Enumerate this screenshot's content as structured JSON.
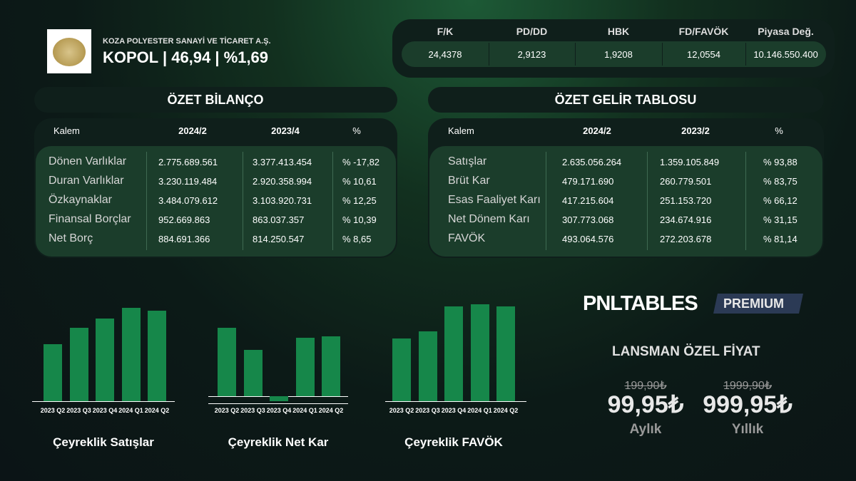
{
  "header": {
    "company": "KOZA POLYESTER SANAYİ VE TİCARET A.Ş.",
    "ticker_line": "KOPOL | 46,94 | %1,69"
  },
  "ratios": {
    "headers": [
      "F/K",
      "PD/DD",
      "HBK",
      "FD/FAVÖK",
      "Piyasa Değ."
    ],
    "values": [
      "24,4378",
      "2,9123",
      "1,9208",
      "12,0554",
      "10.146.550.400"
    ]
  },
  "balance": {
    "title": "ÖZET BİLANÇO",
    "columns": [
      "Kalem",
      "2024/2",
      "2023/4",
      "%"
    ],
    "rows": [
      [
        "Dönen Varlıklar",
        "2.775.689.561",
        "3.377.413.454",
        "% -17,82"
      ],
      [
        "Duran Varlıklar",
        "3.230.119.484",
        "2.920.358.994",
        "% 10,61"
      ],
      [
        "Özkaynaklar",
        "3.484.079.612",
        "3.103.920.731",
        "% 12,25"
      ],
      [
        "Finansal Borçlar",
        "952.669.863",
        "863.037.357",
        "% 10,39"
      ],
      [
        "Net Borç",
        "884.691.366",
        "814.250.547",
        "% 8,65"
      ]
    ]
  },
  "income": {
    "title": "ÖZET GELİR TABLOSU",
    "columns": [
      "Kalem",
      "2024/2",
      "2023/2",
      "%"
    ],
    "rows": [
      [
        "Satışlar",
        "2.635.056.264",
        "1.359.105.849",
        "% 93,88"
      ],
      [
        "Brüt Kar",
        "479.171.690",
        "260.779.501",
        "% 83,75"
      ],
      [
        "Esas Faaliyet Karı",
        "417.215.604",
        "251.153.720",
        "% 66,12"
      ],
      [
        "Net Dönem Karı",
        "307.773.068",
        "234.674.916",
        "% 31,15"
      ],
      [
        "FAVÖK",
        "493.064.576",
        "272.203.678",
        "% 81,14"
      ]
    ]
  },
  "chart_data": [
    {
      "type": "bar",
      "title": "Çeyreklik Satışlar",
      "categories": [
        "2023 Q2",
        "2023 Q3",
        "2023 Q4",
        "2024 Q1",
        "2024 Q2"
      ],
      "values": [
        815,
        1050,
        1185,
        1340,
        1295
      ],
      "color": "#16874a"
    },
    {
      "type": "bar",
      "title": "Çeyreklik Net Kar",
      "categories": [
        "2023 Q2",
        "2023 Q3",
        "2023 Q4",
        "2024 Q1",
        "2024 Q2"
      ],
      "values": [
        178,
        120,
        -13,
        152,
        155
      ],
      "color": "#16874a"
    },
    {
      "type": "bar",
      "title": "Çeyreklik FAVÖK",
      "categories": [
        "2023 Q2",
        "2023 Q3",
        "2023 Q4",
        "2024 Q1",
        "2024 Q2"
      ],
      "values": [
        161,
        179,
        244,
        249,
        244
      ],
      "color": "#16874a"
    }
  ],
  "promo": {
    "brand": "PNLTABLES",
    "badge": "PREMIUM",
    "headline": "LANSMAN ÖZEL FİYAT",
    "plans": [
      {
        "old_price": "199,90₺",
        "price": "99,95₺",
        "period": "Aylık"
      },
      {
        "old_price": "1999,90₺",
        "price": "999,95₺",
        "period": "Yıllık"
      }
    ]
  }
}
